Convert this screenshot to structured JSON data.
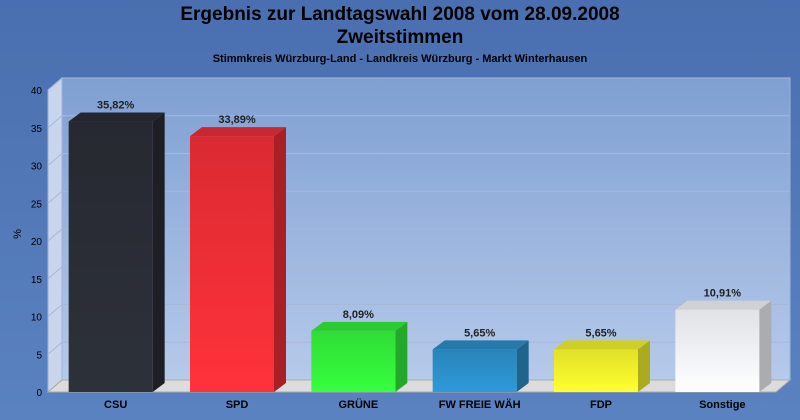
{
  "chart_data": {
    "type": "bar",
    "title_line1": "Ergebnis zur Landtagswahl 2008 vom 28.09.2008",
    "title_line2": "Zweitstimmen",
    "subtitle": "Stimmkreis Würzburg-Land - Landkreis Würzburg - Markt Winterhausen",
    "ylabel": "%",
    "xlabel": "",
    "ylim": [
      0,
      40
    ],
    "yticks": [
      0,
      5,
      10,
      15,
      20,
      25,
      30,
      35,
      40
    ],
    "categories": [
      "CSU",
      "SPD",
      "GRÜNE",
      "FW FREIE WÄH",
      "FDP",
      "Sonstige"
    ],
    "values": [
      35.82,
      33.89,
      8.09,
      5.65,
      5.65,
      10.91
    ],
    "data_labels": [
      "35,82%",
      "33,89%",
      "8,09%",
      "5,65%",
      "5,65%",
      "10,91%"
    ],
    "colors": [
      "#2a2d35",
      "#ee2e36",
      "#33f03a",
      "#2b8fc9",
      "#f4f42c",
      "#f4f6fb"
    ],
    "grid": true,
    "legend": "none"
  }
}
